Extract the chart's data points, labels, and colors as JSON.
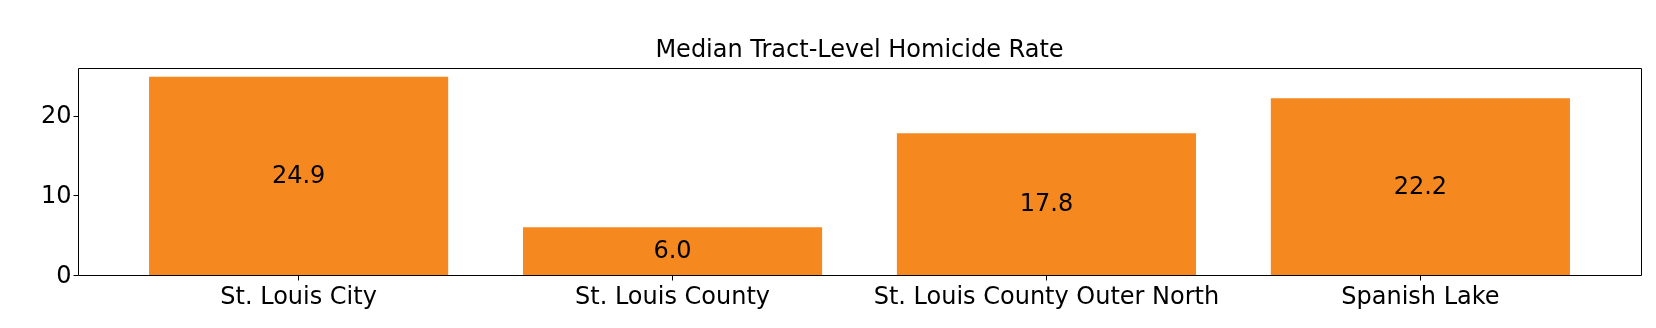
{
  "chart_data": {
    "type": "bar",
    "title": "Median Tract-Level Homicide Rate",
    "categories": [
      "St. Louis City",
      "St. Louis County",
      "St. Louis County Outer North",
      "Spanish Lake"
    ],
    "values": [
      24.9,
      6.0,
      17.8,
      22.2
    ],
    "value_labels": [
      "24.9",
      "6.0",
      "17.8",
      "22.2"
    ],
    "color": "#f5891f",
    "ylim": [
      0,
      26
    ],
    "yticks": [
      0,
      10,
      20
    ],
    "grid": false
  }
}
